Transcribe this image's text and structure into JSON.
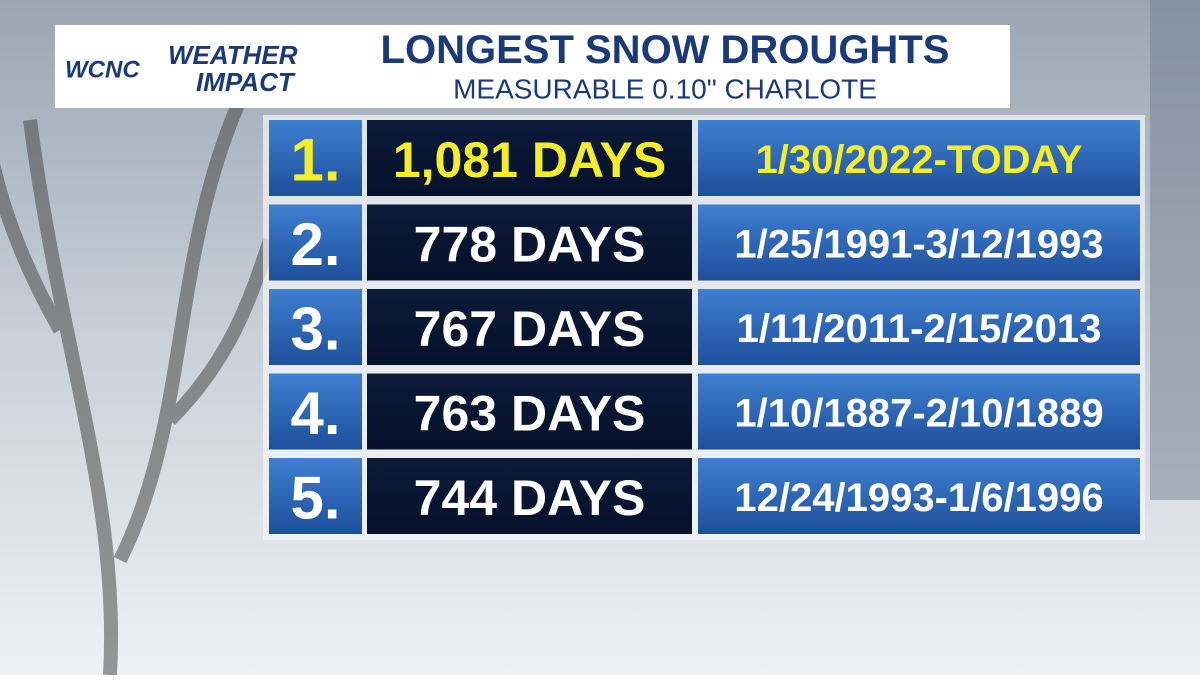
{
  "header": {
    "logo": {
      "station": "WCNC",
      "line1": "WEATHER",
      "line2": "IMPACT"
    },
    "title": "LONGEST SNOW DROUGHTS",
    "subtitle": "MEASURABLE 0.10\" CHARLOTE"
  },
  "table": {
    "rows": [
      [
        "1.",
        "1,081 DAYS",
        "1/30/2022-TODAY"
      ],
      [
        "2.",
        "778 DAYS",
        "1/25/1991-3/12/1993"
      ],
      [
        "3.",
        "767 DAYS",
        "1/11/2011-2/15/2013"
      ],
      [
        "4.",
        "763 DAYS",
        "1/10/1887-2/10/1889"
      ],
      [
        "5.",
        "744 DAYS",
        "12/24/1993-1/6/1996"
      ]
    ]
  }
}
